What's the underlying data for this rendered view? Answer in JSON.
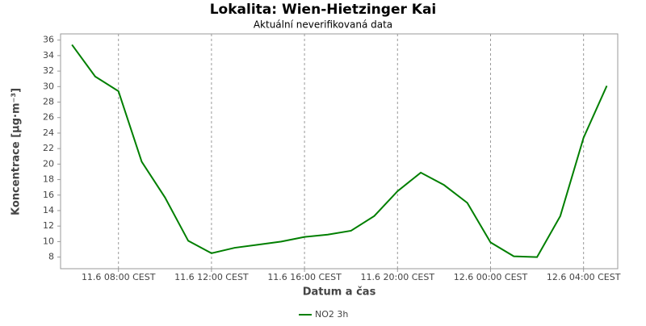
{
  "chart_data": {
    "type": "line",
    "title": "Lokalita: Wien-Hietzinger Kai",
    "subtitle": "Aktuální neverifikovaná data",
    "x_label": "Datum a čas",
    "y_label": "Koncentrace [µg·m⁻³]",
    "x": [
      "11.6 06:00 CEST",
      "11.6 07:00 CEST",
      "11.6 08:00 CEST",
      "11.6 09:00 CEST",
      "11.6 10:00 CEST",
      "11.6 11:00 CEST",
      "11.6 12:00 CEST",
      "11.6 13:00 CEST",
      "11.6 14:00 CEST",
      "11.6 15:00 CEST",
      "11.6 16:00 CEST",
      "11.6 17:00 CEST",
      "11.6 18:00 CEST",
      "11.6 19:00 CEST",
      "11.6 20:00 CEST",
      "11.6 21:00 CEST",
      "11.6 22:00 CEST",
      "11.6 23:00 CEST",
      "12.6 00:00 CEST",
      "12.6 01:00 CEST",
      "12.6 02:00 CEST",
      "12.6 03:00 CEST",
      "12.6 04:00 CEST",
      "12.6 05:00 CEST"
    ],
    "xticks": [
      "11.6 08:00 CEST",
      "11.6 12:00 CEST",
      "11.6 16:00 CEST",
      "11.6 20:00 CEST",
      "12.6 00:00 CEST",
      "12.6 04:00 CEST"
    ],
    "series": [
      {
        "name": "NO2 3h",
        "color": "#007f00",
        "values": [
          35.4,
          31.3,
          29.4,
          20.3,
          15.7,
          10.1,
          8.5,
          9.2,
          9.6,
          10.0,
          10.6,
          10.9,
          11.4,
          13.3,
          16.5,
          18.9,
          17.3,
          15.0,
          9.9,
          8.1,
          8.0,
          13.3,
          23.4,
          30.1
        ]
      }
    ],
    "ylim": [
      6.5,
      36.8
    ],
    "yticks": [
      8,
      10,
      12,
      14,
      16,
      18,
      20,
      22,
      24,
      26,
      28,
      30,
      32,
      34,
      36
    ],
    "grid": "x"
  }
}
